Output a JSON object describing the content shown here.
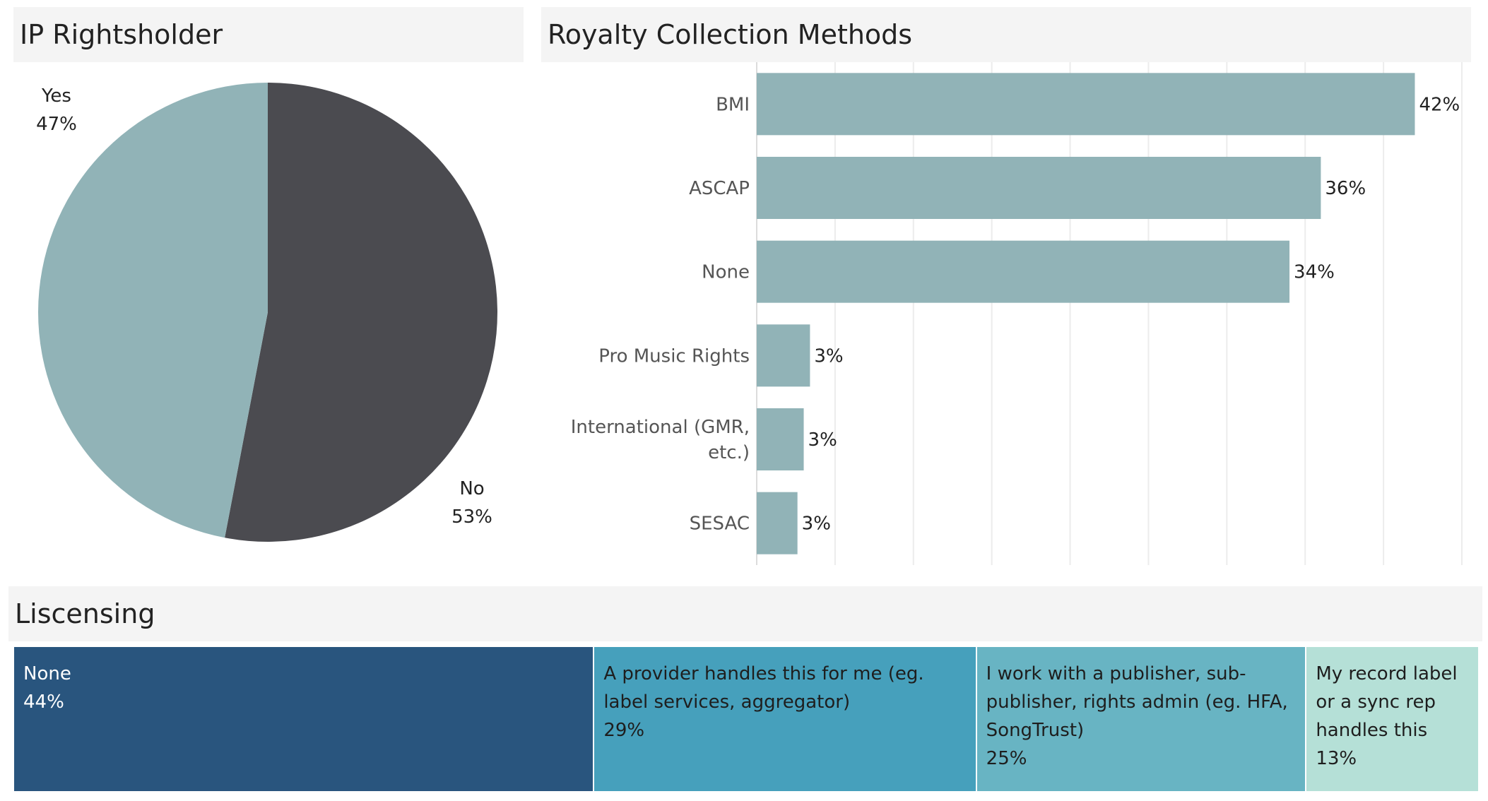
{
  "panels": {
    "pie_title": "IP Rightsholder",
    "bar_title": "Royalty Collection Methods",
    "tree_title": "Liscensing"
  },
  "chart_data": [
    {
      "type": "pie",
      "title": "IP Rightsholder",
      "slices": [
        {
          "label": "No",
          "value": 53,
          "display": "53%",
          "color": "#4b4b50"
        },
        {
          "label": "Yes",
          "value": 47,
          "display": "47%",
          "color": "#91b3b7"
        }
      ],
      "start_angle_deg": 0,
      "direction": "clockwise"
    },
    {
      "type": "bar",
      "orientation": "horizontal",
      "title": "Royalty Collection Methods",
      "categories": [
        "BMI",
        "ASCAP",
        "None",
        "Pro Music Rights",
        "International (GMR, etc.)",
        "SESAC"
      ],
      "values": [
        42,
        36,
        34,
        3.4,
        3,
        2.6
      ],
      "labels": [
        "42%",
        "36%",
        "34%",
        "3%",
        "3%",
        "3%"
      ],
      "xlim": [
        0,
        45
      ],
      "gridlines": [
        0,
        5,
        10,
        15,
        20,
        25,
        30,
        35,
        40,
        45
      ],
      "grid": true,
      "color": "#91b3b7"
    },
    {
      "type": "treemap",
      "title": "Liscensing",
      "items": [
        {
          "label": "None",
          "value": 44,
          "display": "44%",
          "color": "#29557e",
          "text_color": "#ffffff"
        },
        {
          "label": "A provider handles this for me (eg. label services, aggregator)",
          "value": 29,
          "display": "29%",
          "color": "#46a0bc",
          "text_color": "#1e1e1e"
        },
        {
          "label": "I work with a publisher, sub-publisher, rights admin (eg. HFA, SongTrust)",
          "value": 25,
          "display": "25%",
          "color": "#68b4c3",
          "text_color": "#1e1e1e"
        },
        {
          "label": "My record label or a sync rep handles this",
          "value": 13,
          "display": "13%",
          "color": "#b5e0d7",
          "text_color": "#1e1e1e"
        }
      ]
    }
  ]
}
